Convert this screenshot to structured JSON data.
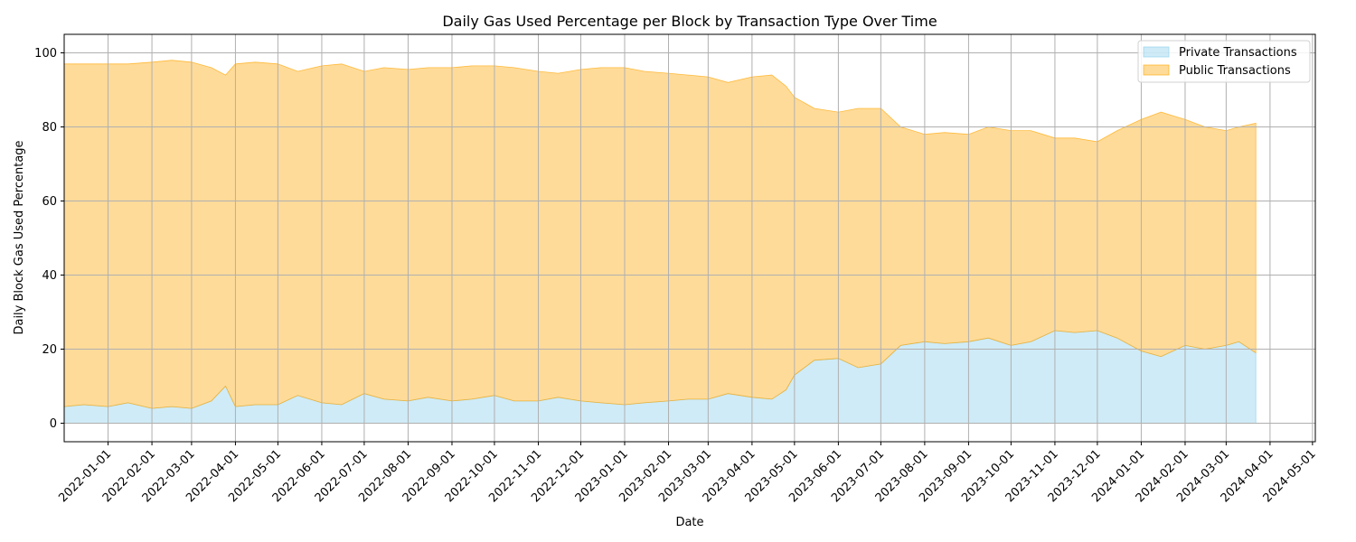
{
  "chart_data": {
    "type": "area",
    "stacked": true,
    "title": "Daily Gas Used Percentage per Block by Transaction Type Over Time",
    "xlabel": "Date",
    "ylabel": "Daily Block Gas Used Percentage",
    "xlim": [
      "2021-12-01",
      "2024-05-03"
    ],
    "ylim": [
      -5,
      105
    ],
    "yticks": [
      0,
      20,
      40,
      60,
      80,
      100
    ],
    "xticks": [
      "2022-01-01",
      "2022-02-01",
      "2022-03-01",
      "2022-04-01",
      "2022-05-01",
      "2022-06-01",
      "2022-07-01",
      "2022-08-01",
      "2022-09-01",
      "2022-10-01",
      "2022-11-01",
      "2022-12-01",
      "2023-01-01",
      "2023-02-01",
      "2023-03-01",
      "2023-04-01",
      "2023-05-01",
      "2023-06-01",
      "2023-07-01",
      "2023-08-01",
      "2023-09-01",
      "2023-10-01",
      "2023-11-01",
      "2023-12-01",
      "2024-01-01",
      "2024-02-01",
      "2024-03-01",
      "2024-04-01",
      "2024-05-01"
    ],
    "grid": true,
    "legend_position": "top-right",
    "series": [
      {
        "name": "Private Transactions",
        "color": "#87ceeb",
        "points": [
          [
            "2021-12-01",
            4.5
          ],
          [
            "2021-12-15",
            5.0
          ],
          [
            "2022-01-01",
            4.5
          ],
          [
            "2022-01-15",
            5.5
          ],
          [
            "2022-02-01",
            4.0
          ],
          [
            "2022-02-15",
            4.5
          ],
          [
            "2022-03-01",
            4.0
          ],
          [
            "2022-03-15",
            6.0
          ],
          [
            "2022-03-25",
            10.0
          ],
          [
            "2022-04-01",
            4.5
          ],
          [
            "2022-04-15",
            5.0
          ],
          [
            "2022-05-01",
            5.0
          ],
          [
            "2022-05-15",
            7.5
          ],
          [
            "2022-06-01",
            5.5
          ],
          [
            "2022-06-15",
            5.0
          ],
          [
            "2022-07-01",
            8.0
          ],
          [
            "2022-07-15",
            6.5
          ],
          [
            "2022-08-01",
            6.0
          ],
          [
            "2022-08-15",
            7.0
          ],
          [
            "2022-09-01",
            6.0
          ],
          [
            "2022-09-15",
            6.5
          ],
          [
            "2022-10-01",
            7.5
          ],
          [
            "2022-10-15",
            6.0
          ],
          [
            "2022-11-01",
            6.0
          ],
          [
            "2022-11-15",
            7.0
          ],
          [
            "2022-12-01",
            6.0
          ],
          [
            "2022-12-15",
            5.5
          ],
          [
            "2023-01-01",
            5.0
          ],
          [
            "2023-01-15",
            5.5
          ],
          [
            "2023-02-01",
            6.0
          ],
          [
            "2023-02-15",
            6.5
          ],
          [
            "2023-03-01",
            6.5
          ],
          [
            "2023-03-15",
            8.0
          ],
          [
            "2023-04-01",
            7.0
          ],
          [
            "2023-04-15",
            6.5
          ],
          [
            "2023-04-25",
            9.0
          ],
          [
            "2023-05-01",
            13.0
          ],
          [
            "2023-05-15",
            17.0
          ],
          [
            "2023-06-01",
            17.5
          ],
          [
            "2023-06-15",
            15.0
          ],
          [
            "2023-07-01",
            16.0
          ],
          [
            "2023-07-15",
            21.0
          ],
          [
            "2023-08-01",
            22.0
          ],
          [
            "2023-08-15",
            21.5
          ],
          [
            "2023-09-01",
            22.0
          ],
          [
            "2023-09-15",
            23.0
          ],
          [
            "2023-10-01",
            21.0
          ],
          [
            "2023-10-15",
            22.0
          ],
          [
            "2023-11-01",
            25.0
          ],
          [
            "2023-11-15",
            24.5
          ],
          [
            "2023-12-01",
            25.0
          ],
          [
            "2023-12-15",
            23.0
          ],
          [
            "2024-01-01",
            19.5
          ],
          [
            "2024-01-15",
            18.0
          ],
          [
            "2024-02-01",
            21.0
          ],
          [
            "2024-02-15",
            20.0
          ],
          [
            "2024-03-01",
            21.0
          ],
          [
            "2024-03-10",
            22.0
          ],
          [
            "2024-03-22",
            19.0
          ]
        ]
      },
      {
        "name": "Public Transactions",
        "color": "#ffa500",
        "points": [
          [
            "2021-12-01",
            92.5
          ],
          [
            "2021-12-15",
            92.0
          ],
          [
            "2022-01-01",
            92.5
          ],
          [
            "2022-01-15",
            91.5
          ],
          [
            "2022-02-01",
            93.5
          ],
          [
            "2022-02-15",
            93.5
          ],
          [
            "2022-03-01",
            93.5
          ],
          [
            "2022-03-15",
            90.0
          ],
          [
            "2022-03-25",
            84.0
          ],
          [
            "2022-04-01",
            92.5
          ],
          [
            "2022-04-15",
            92.5
          ],
          [
            "2022-05-01",
            92.0
          ],
          [
            "2022-05-15",
            87.5
          ],
          [
            "2022-06-01",
            91.0
          ],
          [
            "2022-06-15",
            92.0
          ],
          [
            "2022-07-01",
            87.0
          ],
          [
            "2022-07-15",
            89.5
          ],
          [
            "2022-08-01",
            89.5
          ],
          [
            "2022-08-15",
            89.0
          ],
          [
            "2022-09-01",
            90.0
          ],
          [
            "2022-09-15",
            90.0
          ],
          [
            "2022-10-01",
            89.0
          ],
          [
            "2022-10-15",
            90.0
          ],
          [
            "2022-11-01",
            89.0
          ],
          [
            "2022-11-15",
            87.5
          ],
          [
            "2022-12-01",
            89.5
          ],
          [
            "2022-12-15",
            90.5
          ],
          [
            "2023-01-01",
            91.0
          ],
          [
            "2023-01-15",
            89.5
          ],
          [
            "2023-02-01",
            88.5
          ],
          [
            "2023-02-15",
            87.5
          ],
          [
            "2023-03-01",
            87.0
          ],
          [
            "2023-03-15",
            84.0
          ],
          [
            "2023-04-01",
            86.5
          ],
          [
            "2023-04-15",
            87.5
          ],
          [
            "2023-04-25",
            82.0
          ],
          [
            "2023-05-01",
            75.0
          ],
          [
            "2023-05-15",
            68.0
          ],
          [
            "2023-06-01",
            66.5
          ],
          [
            "2023-06-15",
            70.0
          ],
          [
            "2023-07-01",
            69.0
          ],
          [
            "2023-07-15",
            59.0
          ],
          [
            "2023-08-01",
            56.0
          ],
          [
            "2023-08-15",
            57.0
          ],
          [
            "2023-09-01",
            56.0
          ],
          [
            "2023-09-15",
            57.0
          ],
          [
            "2023-10-01",
            58.0
          ],
          [
            "2023-10-15",
            57.0
          ],
          [
            "2023-11-01",
            52.0
          ],
          [
            "2023-11-15",
            52.5
          ],
          [
            "2023-12-01",
            51.0
          ],
          [
            "2023-12-15",
            56.0
          ],
          [
            "2024-01-01",
            62.5
          ],
          [
            "2024-01-15",
            66.0
          ],
          [
            "2024-02-01",
            61.0
          ],
          [
            "2024-02-15",
            60.0
          ],
          [
            "2024-03-01",
            58.0
          ],
          [
            "2024-03-10",
            58.0
          ],
          [
            "2024-03-22",
            62.0
          ]
        ]
      }
    ]
  }
}
